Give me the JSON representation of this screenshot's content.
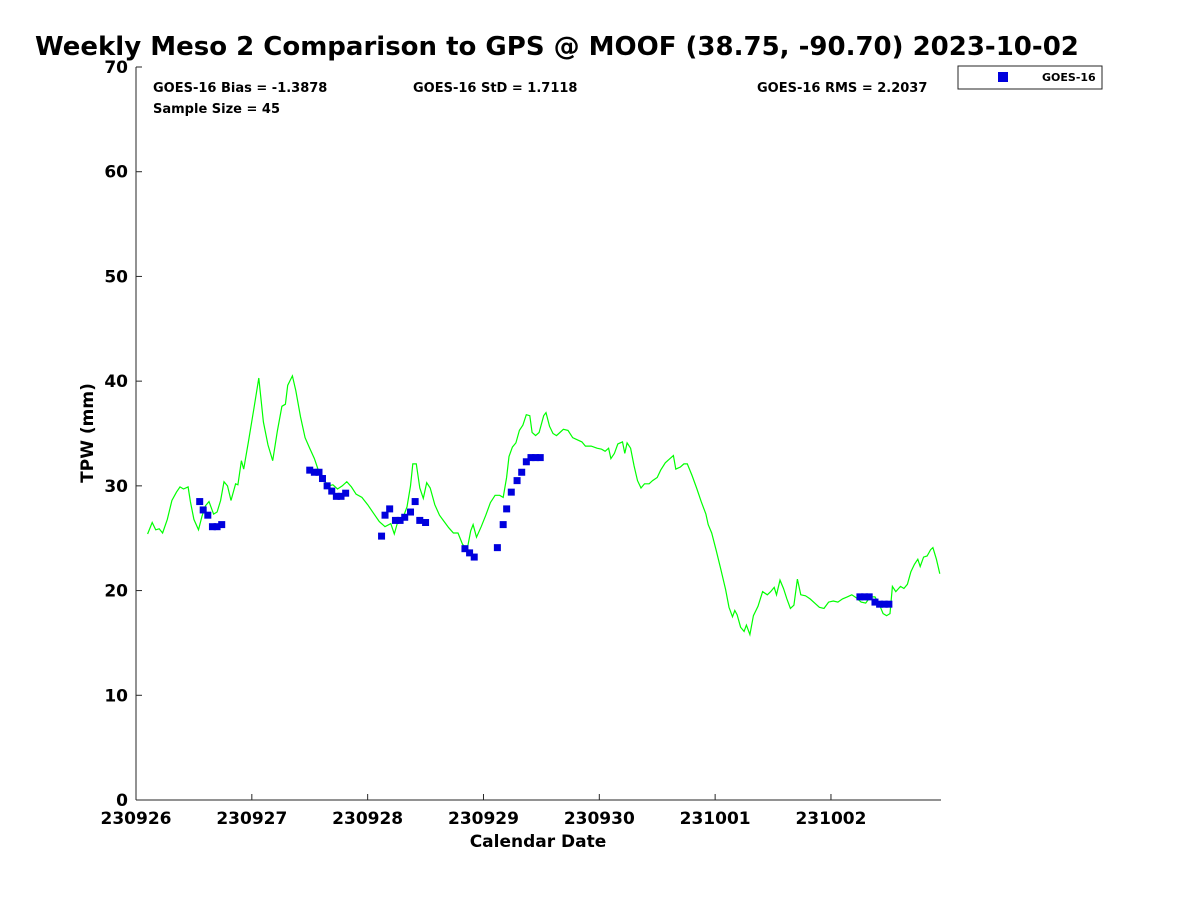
{
  "chart_data": {
    "type": "scatter",
    "title": "Weekly Meso 2 Comparison to GPS @ MOOF (38.75, -90.70) 2023-10-02",
    "xlabel": "Calendar Date",
    "ylabel": "TPW (mm)",
    "xlim": [
      0,
      6.95
    ],
    "ylim": [
      0,
      70
    ],
    "xticks": [
      0,
      1,
      2,
      3,
      4,
      5,
      6
    ],
    "xtick_labels": [
      "230926",
      "230927",
      "230928",
      "230929",
      "230930",
      "231001",
      "231002"
    ],
    "yticks": [
      0,
      10,
      20,
      30,
      40,
      50,
      60,
      70
    ],
    "ytick_labels": [
      "0",
      "10",
      "20",
      "30",
      "40",
      "50",
      "60",
      "70"
    ],
    "grid": false,
    "legend_position": "top-right",
    "stats": {
      "bias": "GOES-16 Bias = -1.3878",
      "std": "GOES-16 StD = 1.7118",
      "rms": "GOES-16 RMS = 2.2037",
      "sample": "Sample Size = 45"
    },
    "colors": {
      "gps": "#00ff00",
      "goes": "#0000dd"
    },
    "series": [
      {
        "name": "GOES-16",
        "style": "square-markers",
        "points": [
          [
            0.55,
            28.5
          ],
          [
            0.58,
            27.7
          ],
          [
            0.62,
            27.2
          ],
          [
            0.66,
            26.1
          ],
          [
            0.7,
            26.1
          ],
          [
            0.74,
            26.3
          ],
          [
            1.5,
            31.5
          ],
          [
            1.54,
            31.3
          ],
          [
            1.58,
            31.3
          ],
          [
            1.61,
            30.7
          ],
          [
            1.65,
            30.0
          ],
          [
            1.69,
            29.5
          ],
          [
            1.73,
            29.0
          ],
          [
            1.77,
            29.0
          ],
          [
            1.81,
            29.3
          ],
          [
            2.12,
            25.2
          ],
          [
            2.15,
            27.2
          ],
          [
            2.19,
            27.8
          ],
          [
            2.24,
            26.7
          ],
          [
            2.28,
            26.7
          ],
          [
            2.32,
            27.0
          ],
          [
            2.37,
            27.5
          ],
          [
            2.41,
            28.5
          ],
          [
            2.45,
            26.7
          ],
          [
            2.5,
            26.5
          ],
          [
            2.84,
            24.0
          ],
          [
            2.88,
            23.6
          ],
          [
            2.92,
            23.2
          ],
          [
            3.12,
            24.1
          ],
          [
            3.17,
            26.3
          ],
          [
            3.2,
            27.8
          ],
          [
            3.24,
            29.4
          ],
          [
            3.29,
            30.5
          ],
          [
            3.33,
            31.3
          ],
          [
            3.37,
            32.3
          ],
          [
            3.41,
            32.7
          ],
          [
            3.45,
            32.7
          ],
          [
            3.49,
            32.7
          ],
          [
            6.25,
            19.4
          ],
          [
            6.29,
            19.4
          ],
          [
            6.33,
            19.4
          ],
          [
            6.38,
            18.9
          ],
          [
            6.42,
            18.7
          ],
          [
            6.46,
            18.7
          ],
          [
            6.5,
            18.7
          ]
        ]
      },
      {
        "style": "line",
        "points": [
          [
            0.1,
            25.4
          ],
          [
            0.14,
            26.5
          ],
          [
            0.17,
            25.8
          ],
          [
            0.2,
            25.9
          ],
          [
            0.23,
            25.5
          ],
          [
            0.27,
            26.8
          ],
          [
            0.31,
            28.6
          ],
          [
            0.35,
            29.4
          ],
          [
            0.38,
            29.9
          ],
          [
            0.41,
            29.7
          ],
          [
            0.45,
            29.9
          ],
          [
            0.47,
            28.5
          ],
          [
            0.5,
            26.8
          ],
          [
            0.54,
            25.8
          ],
          [
            0.57,
            27.1
          ],
          [
            0.6,
            28.1
          ],
          [
            0.63,
            28.5
          ],
          [
            0.67,
            27.3
          ],
          [
            0.7,
            27.5
          ],
          [
            0.73,
            28.6
          ],
          [
            0.76,
            30.4
          ],
          [
            0.79,
            30.0
          ],
          [
            0.82,
            28.6
          ],
          [
            0.86,
            30.2
          ],
          [
            0.88,
            30.1
          ],
          [
            0.91,
            32.4
          ],
          [
            0.93,
            31.6
          ],
          [
            0.97,
            34.2
          ],
          [
            1.02,
            37.5
          ],
          [
            1.06,
            40.3
          ],
          [
            1.1,
            36.1
          ],
          [
            1.14,
            33.9
          ],
          [
            1.18,
            32.4
          ],
          [
            1.22,
            35.2
          ],
          [
            1.26,
            37.6
          ],
          [
            1.29,
            37.8
          ],
          [
            1.31,
            39.6
          ],
          [
            1.35,
            40.5
          ],
          [
            1.38,
            39.1
          ],
          [
            1.42,
            36.6
          ],
          [
            1.46,
            34.6
          ],
          [
            1.5,
            33.6
          ],
          [
            1.54,
            32.6
          ],
          [
            1.58,
            31.3
          ],
          [
            1.62,
            30.6
          ],
          [
            1.66,
            30.0
          ],
          [
            1.7,
            30.1
          ],
          [
            1.74,
            29.7
          ],
          [
            1.78,
            30.0
          ],
          [
            1.82,
            30.4
          ],
          [
            1.86,
            29.9
          ],
          [
            1.9,
            29.2
          ],
          [
            1.95,
            28.9
          ],
          [
            2.0,
            28.2
          ],
          [
            2.05,
            27.4
          ],
          [
            2.1,
            26.6
          ],
          [
            2.15,
            26.1
          ],
          [
            2.2,
            26.4
          ],
          [
            2.23,
            25.4
          ],
          [
            2.26,
            26.6
          ],
          [
            2.3,
            26.8
          ],
          [
            2.34,
            28.0
          ],
          [
            2.37,
            30.0
          ],
          [
            2.39,
            32.1
          ],
          [
            2.42,
            32.1
          ],
          [
            2.45,
            29.8
          ],
          [
            2.48,
            28.8
          ],
          [
            2.51,
            30.3
          ],
          [
            2.54,
            29.8
          ],
          [
            2.58,
            28.2
          ],
          [
            2.62,
            27.2
          ],
          [
            2.66,
            26.6
          ],
          [
            2.7,
            26.0
          ],
          [
            2.74,
            25.5
          ],
          [
            2.78,
            25.5
          ],
          [
            2.82,
            24.4
          ],
          [
            2.86,
            24.0
          ],
          [
            2.89,
            25.7
          ],
          [
            2.91,
            26.3
          ],
          [
            2.94,
            25.1
          ],
          [
            2.98,
            26.1
          ],
          [
            3.02,
            27.2
          ],
          [
            3.06,
            28.4
          ],
          [
            3.1,
            29.1
          ],
          [
            3.14,
            29.1
          ],
          [
            3.17,
            28.9
          ],
          [
            3.2,
            30.8
          ],
          [
            3.22,
            32.8
          ],
          [
            3.25,
            33.7
          ],
          [
            3.28,
            34.1
          ],
          [
            3.31,
            35.3
          ],
          [
            3.34,
            35.8
          ],
          [
            3.37,
            36.8
          ],
          [
            3.4,
            36.7
          ],
          [
            3.42,
            35.1
          ],
          [
            3.45,
            34.8
          ],
          [
            3.48,
            35.1
          ],
          [
            3.52,
            36.7
          ],
          [
            3.54,
            37.0
          ],
          [
            3.57,
            35.7
          ],
          [
            3.6,
            35.0
          ],
          [
            3.63,
            34.8
          ],
          [
            3.66,
            35.1
          ],
          [
            3.69,
            35.4
          ],
          [
            3.73,
            35.3
          ],
          [
            3.77,
            34.6
          ],
          [
            3.81,
            34.4
          ],
          [
            3.85,
            34.2
          ],
          [
            3.88,
            33.8
          ],
          [
            3.93,
            33.8
          ],
          [
            3.98,
            33.6
          ],
          [
            4.02,
            33.5
          ],
          [
            4.05,
            33.3
          ],
          [
            4.08,
            33.6
          ],
          [
            4.1,
            32.6
          ],
          [
            4.13,
            33.1
          ],
          [
            4.16,
            34.0
          ],
          [
            4.2,
            34.2
          ],
          [
            4.22,
            33.1
          ],
          [
            4.24,
            34.1
          ],
          [
            4.27,
            33.6
          ],
          [
            4.3,
            31.9
          ],
          [
            4.33,
            30.5
          ],
          [
            4.36,
            29.8
          ],
          [
            4.39,
            30.2
          ],
          [
            4.43,
            30.2
          ],
          [
            4.46,
            30.5
          ],
          [
            4.5,
            30.8
          ],
          [
            4.53,
            31.5
          ],
          [
            4.57,
            32.2
          ],
          [
            4.61,
            32.6
          ],
          [
            4.64,
            32.9
          ],
          [
            4.66,
            31.6
          ],
          [
            4.7,
            31.8
          ],
          [
            4.73,
            32.1
          ],
          [
            4.76,
            32.1
          ],
          [
            4.8,
            31.0
          ],
          [
            4.84,
            29.8
          ],
          [
            4.88,
            28.5
          ],
          [
            4.92,
            27.3
          ],
          [
            4.94,
            26.3
          ],
          [
            4.97,
            25.5
          ],
          [
            5.01,
            23.8
          ],
          [
            5.05,
            22.0
          ],
          [
            5.09,
            20.1
          ],
          [
            5.12,
            18.4
          ],
          [
            5.15,
            17.5
          ],
          [
            5.17,
            18.1
          ],
          [
            5.19,
            17.7
          ],
          [
            5.22,
            16.5
          ],
          [
            5.25,
            16.1
          ],
          [
            5.27,
            16.7
          ],
          [
            5.3,
            15.8
          ],
          [
            5.33,
            17.6
          ],
          [
            5.37,
            18.5
          ],
          [
            5.41,
            19.9
          ],
          [
            5.45,
            19.6
          ],
          [
            5.48,
            19.9
          ],
          [
            5.51,
            20.3
          ],
          [
            5.53,
            19.6
          ],
          [
            5.56,
            21.0
          ],
          [
            5.59,
            20.2
          ],
          [
            5.62,
            19.2
          ],
          [
            5.65,
            18.3
          ],
          [
            5.68,
            18.6
          ],
          [
            5.71,
            21.1
          ],
          [
            5.74,
            19.6
          ],
          [
            5.78,
            19.5
          ],
          [
            5.82,
            19.2
          ],
          [
            5.86,
            18.8
          ],
          [
            5.9,
            18.4
          ],
          [
            5.94,
            18.3
          ],
          [
            5.98,
            18.9
          ],
          [
            6.02,
            19.0
          ],
          [
            6.06,
            18.9
          ],
          [
            6.1,
            19.2
          ],
          [
            6.14,
            19.4
          ],
          [
            6.18,
            19.6
          ],
          [
            6.22,
            19.3
          ],
          [
            6.26,
            18.9
          ],
          [
            6.3,
            18.8
          ],
          [
            6.34,
            19.4
          ],
          [
            6.38,
            19.4
          ],
          [
            6.42,
            18.6
          ],
          [
            6.45,
            17.8
          ],
          [
            6.48,
            17.6
          ],
          [
            6.51,
            17.8
          ],
          [
            6.53,
            20.4
          ],
          [
            6.56,
            19.9
          ],
          [
            6.6,
            20.4
          ],
          [
            6.63,
            20.2
          ],
          [
            6.66,
            20.6
          ],
          [
            6.69,
            21.8
          ],
          [
            6.72,
            22.5
          ],
          [
            6.75,
            23.0
          ],
          [
            6.77,
            22.3
          ],
          [
            6.8,
            23.2
          ],
          [
            6.83,
            23.3
          ],
          [
            6.86,
            23.9
          ],
          [
            6.88,
            24.1
          ],
          [
            6.91,
            23.0
          ],
          [
            6.94,
            21.6
          ]
        ]
      }
    ]
  }
}
